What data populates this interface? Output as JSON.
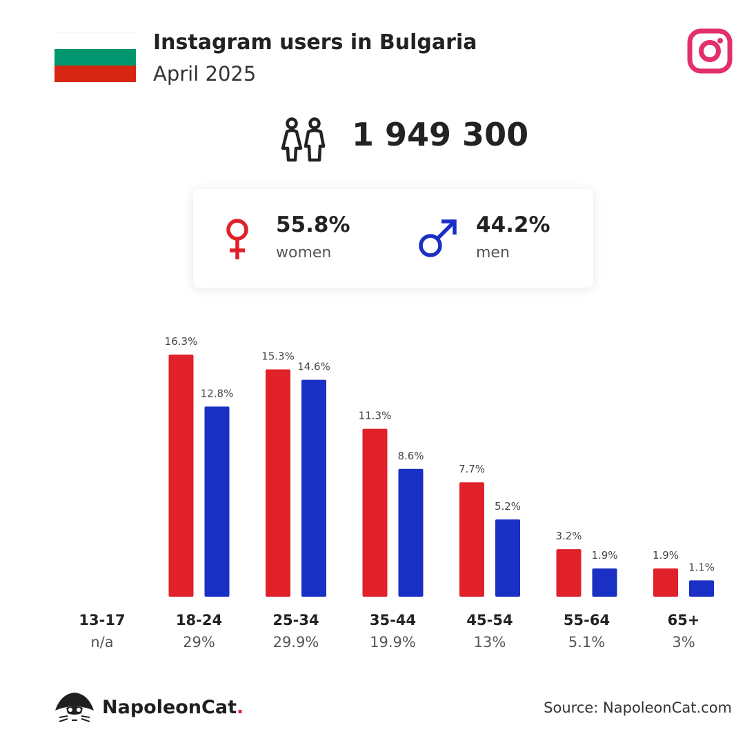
{
  "header": {
    "title": "Instagram users in Bulgaria",
    "subtitle": "April 2025",
    "flag_colors": [
      "#ffffff",
      "#00966e",
      "#d62612"
    ],
    "logo_icon": "instagram-icon",
    "logo_color": "#e1306c"
  },
  "total": {
    "icon": "people-icon",
    "value": "1 949 300"
  },
  "gender": {
    "women": {
      "icon": "female-icon",
      "pct": "55.8%",
      "label": "women",
      "color": "#e0212a"
    },
    "men": {
      "icon": "male-icon",
      "pct": "44.2%",
      "label": "men",
      "color": "#1a2fc4"
    }
  },
  "chart_data": {
    "type": "bar",
    "categories": [
      "13-17",
      "18-24",
      "25-34",
      "35-44",
      "45-54",
      "55-64",
      "65+"
    ],
    "category_totals": [
      "n/a",
      "29%",
      "29.9%",
      "19.9%",
      "13%",
      "5.1%",
      "3%"
    ],
    "series": [
      {
        "name": "women",
        "color": "#e0212a",
        "values": [
          null,
          16.3,
          15.3,
          11.3,
          7.7,
          3.2,
          1.9
        ],
        "labels": [
          "",
          "16.3%",
          "15.3%",
          "11.3%",
          "7.7%",
          "3.2%",
          "1.9%"
        ]
      },
      {
        "name": "men",
        "color": "#1a2fc4",
        "values": [
          null,
          12.8,
          14.6,
          8.6,
          5.2,
          1.9,
          1.1
        ],
        "labels": [
          "",
          "12.8%",
          "14.6%",
          "8.6%",
          "5.2%",
          "1.9%",
          "1.1%"
        ]
      }
    ],
    "ylim": [
      0,
      16.3
    ],
    "grid": false,
    "legend": "none"
  },
  "footer": {
    "brand_name": "NapoleonCat",
    "brand_dot": ".",
    "source": "Source: NapoleonCat.com"
  }
}
